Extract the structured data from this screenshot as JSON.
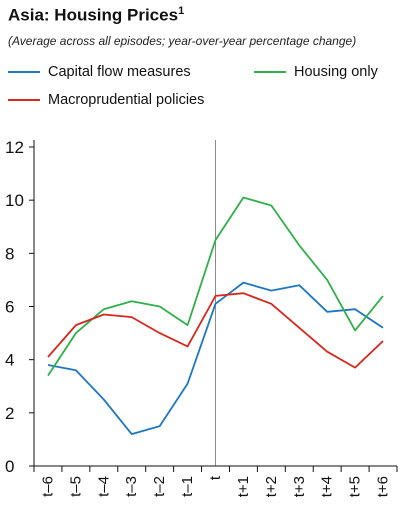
{
  "chart_data": {
    "type": "line",
    "title": "Asia: Housing Prices",
    "title_superscript": "1",
    "subtitle": "(Average across all episodes; year-over-year percentage change)",
    "xlabel": "",
    "ylabel": "",
    "categories": [
      "t–6",
      "t–5",
      "t–4",
      "t–3",
      "t–2",
      "t–1",
      "t",
      "t+1",
      "t+2",
      "t+3",
      "t+4",
      "t+5",
      "t+6"
    ],
    "ylim": [
      0,
      12
    ],
    "yticks": [
      "0",
      "2",
      "4",
      "6",
      "8",
      "10",
      "12"
    ],
    "grid": false,
    "reference_line_at": "t",
    "legend_position": "top",
    "series": [
      {
        "name": "Capital flow measures",
        "color": "#1f77c4",
        "values": [
          3.8,
          3.6,
          2.5,
          1.2,
          1.5,
          3.1,
          6.1,
          6.9,
          6.6,
          6.8,
          5.8,
          5.9,
          5.2
        ]
      },
      {
        "name": "Housing only",
        "color": "#2fb04a",
        "values": [
          3.4,
          5.0,
          5.9,
          6.2,
          6.0,
          5.3,
          8.5,
          10.1,
          9.8,
          8.3,
          7.0,
          5.1,
          6.4
        ]
      },
      {
        "name": "Macroprudential policies",
        "color": "#d7281e",
        "values": [
          4.1,
          5.3,
          5.7,
          5.6,
          5.0,
          4.5,
          6.4,
          6.5,
          6.1,
          5.2,
          4.3,
          3.7,
          4.7
        ]
      }
    ]
  }
}
